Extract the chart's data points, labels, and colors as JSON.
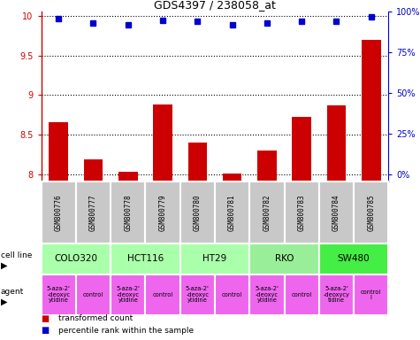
{
  "title": "GDS4397 / 238058_at",
  "samples": [
    "GSM800776",
    "GSM800777",
    "GSM800778",
    "GSM800779",
    "GSM800780",
    "GSM800781",
    "GSM800782",
    "GSM800783",
    "GSM800784",
    "GSM800785"
  ],
  "transformed_counts": [
    8.65,
    8.18,
    8.03,
    8.88,
    8.4,
    8.01,
    8.3,
    8.72,
    8.87,
    9.7
  ],
  "percentile_ranks": [
    96,
    93,
    92,
    95,
    94,
    92,
    93,
    94,
    94,
    97
  ],
  "cell_lines": [
    {
      "label": "COLO320",
      "start": 0,
      "end": 2,
      "color": "#aaffaa"
    },
    {
      "label": "HCT116",
      "start": 2,
      "end": 4,
      "color": "#aaffaa"
    },
    {
      "label": "HT29",
      "start": 4,
      "end": 6,
      "color": "#aaffaa"
    },
    {
      "label": "RKO",
      "start": 6,
      "end": 8,
      "color": "#99ee99"
    },
    {
      "label": "SW480",
      "start": 8,
      "end": 10,
      "color": "#44ee44"
    }
  ],
  "agents": [
    {
      "label": "5-aza-2'\n-deoxyc\nytidine",
      "start": 0,
      "end": 1,
      "color": "#ee66ee"
    },
    {
      "label": "control",
      "start": 1,
      "end": 2,
      "color": "#ee66ee"
    },
    {
      "label": "5-aza-2'\n-deoxyc\nytidine",
      "start": 2,
      "end": 3,
      "color": "#ee66ee"
    },
    {
      "label": "control",
      "start": 3,
      "end": 4,
      "color": "#ee66ee"
    },
    {
      "label": "5-aza-2'\n-deoxyc\nytidine",
      "start": 4,
      "end": 5,
      "color": "#ee66ee"
    },
    {
      "label": "control",
      "start": 5,
      "end": 6,
      "color": "#ee66ee"
    },
    {
      "label": "5-aza-2'\n-deoxyc\nytidine",
      "start": 6,
      "end": 7,
      "color": "#ee66ee"
    },
    {
      "label": "control",
      "start": 7,
      "end": 8,
      "color": "#ee66ee"
    },
    {
      "label": "5-aza-2'\n-deoxycy\ntidine",
      "start": 8,
      "end": 9,
      "color": "#ee66ee"
    },
    {
      "label": "control\nl",
      "start": 9,
      "end": 10,
      "color": "#ee66ee"
    }
  ],
  "ylim_left": [
    7.9,
    10.05
  ],
  "yticks_left": [
    8.0,
    8.5,
    9.0,
    9.5,
    10.0
  ],
  "ytick_labels_left": [
    "8",
    "8.5",
    "9",
    "9.5",
    "10"
  ],
  "ylim_right": [
    -4.75,
    100
  ],
  "yticks_right": [
    0,
    25,
    50,
    75,
    100
  ],
  "ytick_labels_right": [
    "0%",
    "25%",
    "50%",
    "75%",
    "100%"
  ],
  "bar_color": "#cc0000",
  "dot_color": "#0000cc",
  "bar_width": 0.55,
  "sample_bg_color": "#c8c8c8",
  "left_axis_color": "#cc0000",
  "right_axis_color": "#0000cc",
  "fig_width": 4.75,
  "fig_height": 3.84,
  "dpi": 100
}
